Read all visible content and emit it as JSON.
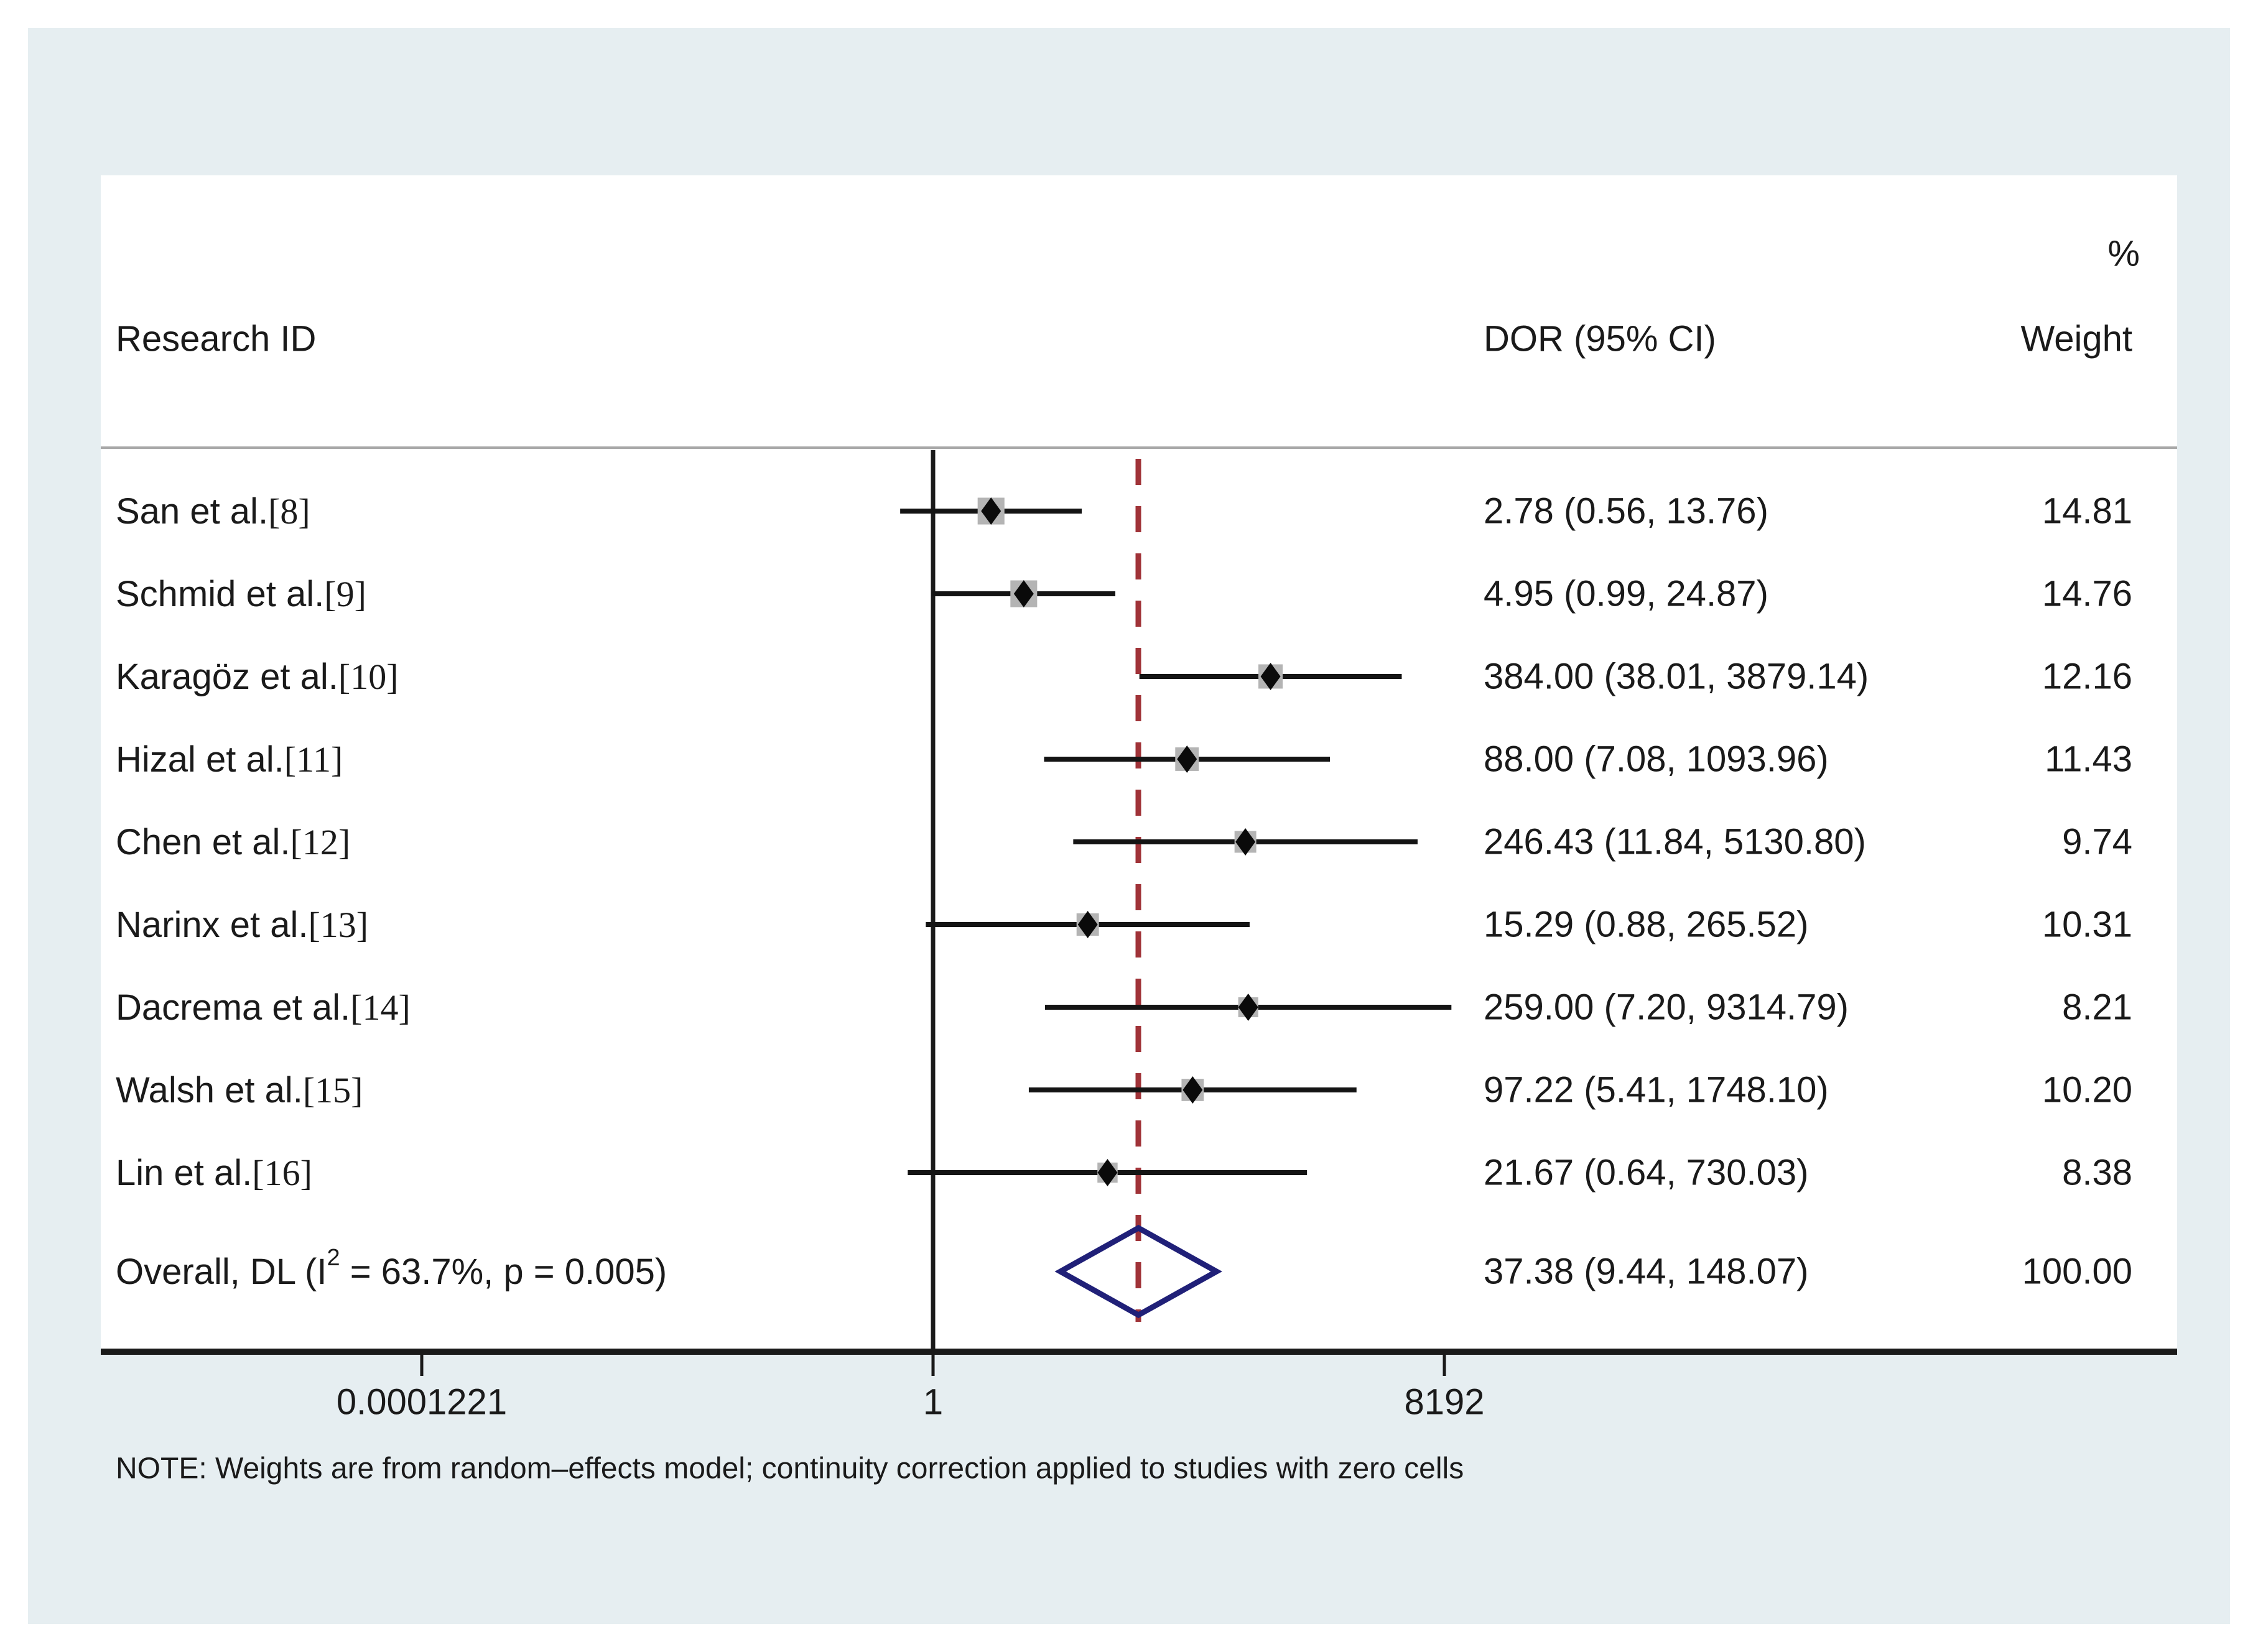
{
  "header": {
    "research_id": "Research ID",
    "dor": "DOR (95% CI)",
    "percent": "%",
    "weight": "Weight"
  },
  "note": "NOTE: Weights are from random–effects model; continuity correction applied to studies with zero cells",
  "colors": {
    "panel_background": "#e6eef1",
    "card_background": "#ffffff",
    "text": "#1a1a1a",
    "ci_line": "#141414",
    "weight_box": "#b4b4b4",
    "point_marker": "#0a0a0a",
    "overall_diamond": "#202078",
    "null_line": "#1a1a1a",
    "overall_dashed_line": "#a03338",
    "divider": "#a8a8a8",
    "axis": "#1a1a1a"
  },
  "chart_data": {
    "type": "forest",
    "x_axis": {
      "scale": "log",
      "ticks": [
        {
          "value": 0.0001221,
          "label": "0.0001221"
        },
        {
          "value": 1,
          "label": "1"
        },
        {
          "value": 8192,
          "label": "8192"
        }
      ],
      "null_line_value": 1,
      "overall_line_value": 37.38
    },
    "studies": [
      {
        "name": "San et al.",
        "ref": "[8]",
        "dor": 2.78,
        "ci_low": 0.56,
        "ci_high": 13.76,
        "dor_text": "2.78 (0.56, 13.76)",
        "weight": 14.81,
        "weight_text": "14.81"
      },
      {
        "name": "Schmid et al.",
        "ref": "[9]",
        "dor": 4.95,
        "ci_low": 0.99,
        "ci_high": 24.87,
        "dor_text": "4.95 (0.99, 24.87)",
        "weight": 14.76,
        "weight_text": "14.76"
      },
      {
        "name": "Karagöz et al.",
        "ref": "[10]",
        "dor": 384.0,
        "ci_low": 38.01,
        "ci_high": 3879.14,
        "dor_text": "384.00 (38.01, 3879.14)",
        "weight": 12.16,
        "weight_text": "12.16"
      },
      {
        "name": "Hizal et al.",
        "ref": "[11]",
        "dor": 88.0,
        "ci_low": 7.08,
        "ci_high": 1093.96,
        "dor_text": "88.00 (7.08, 1093.96)",
        "weight": 11.43,
        "weight_text": "11.43"
      },
      {
        "name": "Chen et al.",
        "ref": "[12]",
        "dor": 246.43,
        "ci_low": 11.84,
        "ci_high": 5130.8,
        "dor_text": "246.43 (11.84, 5130.80)",
        "weight": 9.74,
        "weight_text": "9.74"
      },
      {
        "name": "Narinx et al.",
        "ref": "[13]",
        "dor": 15.29,
        "ci_low": 0.88,
        "ci_high": 265.52,
        "dor_text": "15.29 (0.88, 265.52)",
        "weight": 10.31,
        "weight_text": "10.31"
      },
      {
        "name": "Dacrema et al.",
        "ref": "[14]",
        "dor": 259.0,
        "ci_low": 7.2,
        "ci_high": 9314.79,
        "dor_text": "259.00 (7.20, 9314.79)",
        "weight": 8.21,
        "weight_text": "8.21"
      },
      {
        "name": "Walsh et al.",
        "ref": "[15]",
        "dor": 97.22,
        "ci_low": 5.41,
        "ci_high": 1748.1,
        "dor_text": "97.22 (5.41, 1748.10)",
        "weight": 10.2,
        "weight_text": "10.20"
      },
      {
        "name": "Lin et al.",
        "ref": "[16]",
        "dor": 21.67,
        "ci_low": 0.64,
        "ci_high": 730.03,
        "dor_text": "21.67 (0.64, 730.03)",
        "weight": 8.38,
        "weight_text": "8.38"
      }
    ],
    "overall": {
      "label_prefix": "Overall, DL (I",
      "label_sup": "2",
      "label_suffix": " = 63.7%, p = 0.005)",
      "dor": 37.38,
      "ci_low": 9.44,
      "ci_high": 148.07,
      "dor_text": "37.38 (9.44, 148.07)",
      "weight_text": "100.00"
    }
  }
}
